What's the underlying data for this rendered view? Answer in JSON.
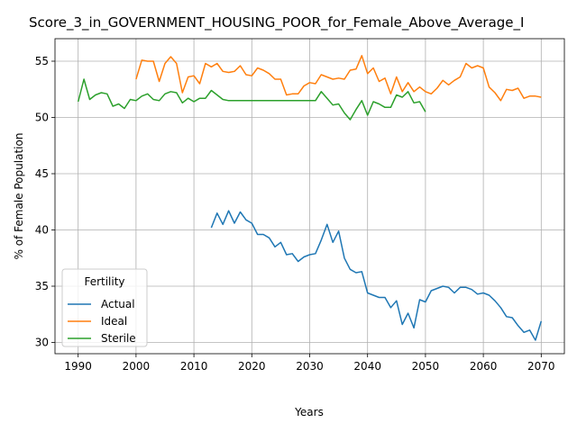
{
  "chart_data": {
    "type": "line",
    "title": "Score_3_in_GOVERNMENT_HOUSING_POOR_for_Female_Above_Average_I",
    "xlabel": "Years",
    "ylabel": "% of Female Population",
    "xlim": [
      1986,
      2074
    ],
    "ylim": [
      29,
      57
    ],
    "xticks": [
      1990,
      2000,
      2010,
      2020,
      2030,
      2040,
      2050,
      2060,
      2070
    ],
    "yticks": [
      30,
      35,
      40,
      45,
      50,
      55
    ],
    "grid": true,
    "legend": {
      "title": "Fertility",
      "position": "lower-left"
    },
    "series": [
      {
        "name": "Actual",
        "color": "#1f77b4",
        "x": [
          2013,
          2014,
          2015,
          2016,
          2017,
          2018,
          2019,
          2020,
          2021,
          2022,
          2023,
          2024,
          2025,
          2026,
          2027,
          2028,
          2029,
          2030,
          2031,
          2032,
          2033,
          2034,
          2035,
          2036,
          2037,
          2038,
          2039,
          2040,
          2041,
          2042,
          2043,
          2044,
          2045,
          2046,
          2047,
          2048,
          2049,
          2050,
          2051,
          2052,
          2053,
          2054,
          2055,
          2056,
          2057,
          2058,
          2059,
          2060,
          2061,
          2062,
          2063,
          2064,
          2065,
          2066,
          2067,
          2068,
          2069,
          2070
        ],
        "y": [
          40.2,
          41.5,
          40.5,
          41.7,
          40.6,
          41.6,
          40.9,
          40.6,
          39.6,
          39.6,
          39.3,
          38.5,
          38.9,
          37.8,
          37.9,
          37.2,
          37.6,
          37.8,
          37.9,
          39.1,
          40.5,
          38.9,
          39.9,
          37.5,
          36.5,
          36.2,
          36.3,
          34.4,
          34.2,
          34.0,
          34.0,
          33.1,
          33.7,
          31.6,
          32.6,
          31.3,
          33.8,
          33.6,
          34.6,
          34.8,
          35.0,
          34.9,
          34.4,
          34.9,
          34.9,
          34.7,
          34.3,
          34.4,
          34.2,
          33.7,
          33.1,
          32.3,
          32.2,
          31.5,
          30.9,
          31.1,
          30.2,
          31.9
        ]
      },
      {
        "name": "Ideal",
        "color": "#ff7f0e",
        "x": [
          2000,
          2001,
          2002,
          2003,
          2004,
          2005,
          2006,
          2007,
          2008,
          2009,
          2010,
          2011,
          2012,
          2013,
          2014,
          2015,
          2016,
          2017,
          2018,
          2019,
          2020,
          2021,
          2022,
          2023,
          2024,
          2025,
          2026,
          2027,
          2028,
          2029,
          2030,
          2031,
          2032,
          2033,
          2034,
          2035,
          2036,
          2037,
          2038,
          2039,
          2040,
          2041,
          2042,
          2043,
          2044,
          2045,
          2046,
          2047,
          2048,
          2049,
          2050,
          2051,
          2052,
          2053,
          2054,
          2055,
          2056,
          2057,
          2058,
          2059,
          2060,
          2061,
          2062,
          2063,
          2064,
          2065,
          2066,
          2067,
          2068,
          2069,
          2070
        ],
        "y": [
          53.4,
          55.1,
          55.0,
          55.0,
          53.2,
          54.8,
          55.4,
          54.8,
          52.2,
          53.6,
          53.7,
          53.0,
          54.8,
          54.5,
          54.8,
          54.1,
          54.0,
          54.1,
          54.6,
          53.8,
          53.7,
          54.4,
          54.2,
          53.9,
          53.4,
          53.4,
          52.0,
          52.1,
          52.1,
          52.8,
          53.1,
          53.0,
          53.8,
          53.6,
          53.4,
          53.5,
          53.4,
          54.2,
          54.3,
          55.5,
          53.9,
          54.4,
          53.2,
          53.5,
          52.1,
          53.6,
          52.3,
          53.1,
          52.3,
          52.7,
          52.3,
          52.1,
          52.6,
          53.3,
          52.9,
          53.3,
          53.6,
          54.8,
          54.4,
          54.6,
          54.4,
          52.7,
          52.2,
          51.5,
          52.5,
          52.4,
          52.6,
          51.7,
          51.9,
          51.9,
          51.8
        ]
      },
      {
        "name": "Sterile",
        "color": "#2ca02c",
        "x": [
          1990,
          1991,
          1992,
          1993,
          1994,
          1995,
          1996,
          1997,
          1998,
          1999,
          2000,
          2001,
          2002,
          2003,
          2004,
          2005,
          2006,
          2007,
          2008,
          2009,
          2010,
          2011,
          2012,
          2013,
          2014,
          2015,
          2016,
          2017,
          2018,
          2019,
          2020,
          2021,
          2022,
          2023,
          2024,
          2025,
          2026,
          2027,
          2028,
          2029,
          2030,
          2031,
          2032,
          2033,
          2034,
          2035,
          2036,
          2037,
          2038,
          2039,
          2040,
          2041,
          2042,
          2043,
          2044,
          2045,
          2046,
          2047,
          2048,
          2049,
          2050
        ],
        "y": [
          51.4,
          53.4,
          51.6,
          52.0,
          52.2,
          52.1,
          51.0,
          51.2,
          50.8,
          51.6,
          51.5,
          51.9,
          52.1,
          51.6,
          51.5,
          52.1,
          52.3,
          52.2,
          51.3,
          51.7,
          51.4,
          51.7,
          51.7,
          52.4,
          52.0,
          51.6,
          51.5,
          51.5,
          51.5,
          51.5,
          51.5,
          51.5,
          51.5,
          51.5,
          51.5,
          51.5,
          51.5,
          51.5,
          51.5,
          51.5,
          51.5,
          51.5,
          52.3,
          51.7,
          51.1,
          51.2,
          50.4,
          49.8,
          50.7,
          51.5,
          50.2,
          51.4,
          51.2,
          50.9,
          50.9,
          52.0,
          51.8,
          52.3,
          51.3,
          51.4,
          50.5
        ]
      }
    ]
  }
}
